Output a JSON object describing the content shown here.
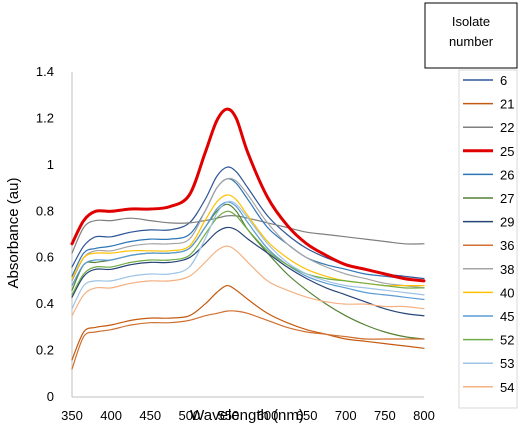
{
  "chart_data": {
    "type": "line",
    "xlabel": "Wavelength (nm)",
    "ylabel": "Absorbance (au)",
    "xlim": [
      350,
      800
    ],
    "ylim": [
      0,
      1.4
    ],
    "x_ticks": [
      "350",
      "400",
      "450",
      "500",
      "550",
      "600",
      "650",
      "700",
      "750",
      "800"
    ],
    "y_ticks": [
      "0",
      "0.2",
      "0.4",
      "0.6",
      "0.8",
      "1",
      "1.2",
      "1.4"
    ],
    "grid": false,
    "legend_position": "right",
    "legend_title_lines": [
      "Isolate",
      "number"
    ],
    "x": [
      350,
      365,
      380,
      400,
      425,
      450,
      475,
      500,
      520,
      535,
      548,
      560,
      575,
      600,
      625,
      650,
      675,
      700,
      725,
      750,
      775,
      800
    ],
    "series": [
      {
        "name": "6",
        "color": "#2e5597",
        "width": 1.2,
        "values": [
          0.56,
          0.65,
          0.69,
          0.69,
          0.71,
          0.72,
          0.72,
          0.75,
          0.85,
          0.95,
          0.99,
          0.97,
          0.9,
          0.78,
          0.7,
          0.64,
          0.6,
          0.57,
          0.55,
          0.53,
          0.52,
          0.51
        ]
      },
      {
        "name": "21",
        "color": "#c55a11",
        "width": 1.2,
        "values": [
          0.16,
          0.28,
          0.3,
          0.31,
          0.33,
          0.34,
          0.34,
          0.35,
          0.4,
          0.45,
          0.48,
          0.46,
          0.42,
          0.36,
          0.32,
          0.29,
          0.27,
          0.25,
          0.24,
          0.23,
          0.22,
          0.21
        ]
      },
      {
        "name": "22",
        "color": "#7f7f7f",
        "width": 1.2,
        "values": [
          0.62,
          0.73,
          0.76,
          0.76,
          0.77,
          0.76,
          0.75,
          0.75,
          0.76,
          0.77,
          0.78,
          0.78,
          0.77,
          0.75,
          0.73,
          0.71,
          0.7,
          0.69,
          0.68,
          0.67,
          0.66,
          0.66
        ]
      },
      {
        "name": "25",
        "color": "#e00000",
        "width": 3.0,
        "values": [
          0.66,
          0.76,
          0.8,
          0.8,
          0.81,
          0.81,
          0.82,
          0.87,
          1.05,
          1.19,
          1.24,
          1.2,
          1.05,
          0.86,
          0.74,
          0.66,
          0.61,
          0.57,
          0.55,
          0.53,
          0.51,
          0.5
        ]
      },
      {
        "name": "26",
        "color": "#2e75b6",
        "width": 1.2,
        "values": [
          0.52,
          0.62,
          0.64,
          0.65,
          0.67,
          0.68,
          0.68,
          0.7,
          0.8,
          0.9,
          0.94,
          0.92,
          0.85,
          0.73,
          0.66,
          0.6,
          0.57,
          0.55,
          0.53,
          0.52,
          0.51,
          0.5
        ]
      },
      {
        "name": "27",
        "color": "#548235",
        "width": 1.2,
        "values": [
          0.46,
          0.57,
          0.58,
          0.59,
          0.61,
          0.62,
          0.62,
          0.64,
          0.73,
          0.8,
          0.83,
          0.8,
          0.72,
          0.62,
          0.53,
          0.46,
          0.4,
          0.35,
          0.31,
          0.28,
          0.26,
          0.25
        ]
      },
      {
        "name": "29",
        "color": "#264478",
        "width": 1.2,
        "values": [
          0.43,
          0.52,
          0.55,
          0.55,
          0.57,
          0.58,
          0.58,
          0.6,
          0.66,
          0.71,
          0.73,
          0.72,
          0.68,
          0.62,
          0.56,
          0.51,
          0.47,
          0.44,
          0.41,
          0.38,
          0.36,
          0.35
        ]
      },
      {
        "name": "36",
        "color": "#d07030",
        "width": 1.2,
        "values": [
          0.12,
          0.26,
          0.28,
          0.29,
          0.31,
          0.32,
          0.32,
          0.33,
          0.35,
          0.36,
          0.37,
          0.37,
          0.36,
          0.33,
          0.3,
          0.28,
          0.27,
          0.26,
          0.25,
          0.25,
          0.25,
          0.25
        ]
      },
      {
        "name": "38",
        "color": "#a5a5a5",
        "width": 1.2,
        "values": [
          0.5,
          0.6,
          0.63,
          0.63,
          0.65,
          0.66,
          0.66,
          0.68,
          0.8,
          0.9,
          0.94,
          0.93,
          0.87,
          0.75,
          0.66,
          0.6,
          0.56,
          0.53,
          0.51,
          0.49,
          0.48,
          0.47
        ]
      },
      {
        "name": "40",
        "color": "#ffc000",
        "width": 1.2,
        "values": [
          0.51,
          0.6,
          0.62,
          0.62,
          0.63,
          0.63,
          0.63,
          0.65,
          0.76,
          0.84,
          0.87,
          0.85,
          0.78,
          0.67,
          0.6,
          0.55,
          0.52,
          0.5,
          0.49,
          0.48,
          0.48,
          0.48
        ]
      },
      {
        "name": "45",
        "color": "#5b9bd5",
        "width": 1.2,
        "values": [
          0.48,
          0.57,
          0.59,
          0.59,
          0.61,
          0.62,
          0.62,
          0.64,
          0.73,
          0.81,
          0.84,
          0.82,
          0.75,
          0.64,
          0.57,
          0.52,
          0.49,
          0.47,
          0.45,
          0.44,
          0.43,
          0.42
        ]
      },
      {
        "name": "52",
        "color": "#70ad47",
        "width": 1.2,
        "values": [
          0.44,
          0.53,
          0.56,
          0.56,
          0.58,
          0.59,
          0.59,
          0.61,
          0.7,
          0.77,
          0.8,
          0.78,
          0.72,
          0.63,
          0.57,
          0.53,
          0.51,
          0.5,
          0.49,
          0.48,
          0.47,
          0.47
        ]
      },
      {
        "name": "53",
        "color": "#9dc3e6",
        "width": 1.2,
        "values": [
          0.38,
          0.48,
          0.5,
          0.5,
          0.52,
          0.53,
          0.53,
          0.56,
          0.68,
          0.79,
          0.84,
          0.83,
          0.77,
          0.66,
          0.58,
          0.53,
          0.5,
          0.48,
          0.47,
          0.46,
          0.45,
          0.44
        ]
      },
      {
        "name": "54",
        "color": "#f4b183",
        "width": 1.2,
        "values": [
          0.35,
          0.44,
          0.47,
          0.47,
          0.49,
          0.5,
          0.5,
          0.52,
          0.58,
          0.63,
          0.65,
          0.63,
          0.58,
          0.5,
          0.46,
          0.43,
          0.41,
          0.4,
          0.4,
          0.39,
          0.39,
          0.38
        ]
      }
    ]
  }
}
